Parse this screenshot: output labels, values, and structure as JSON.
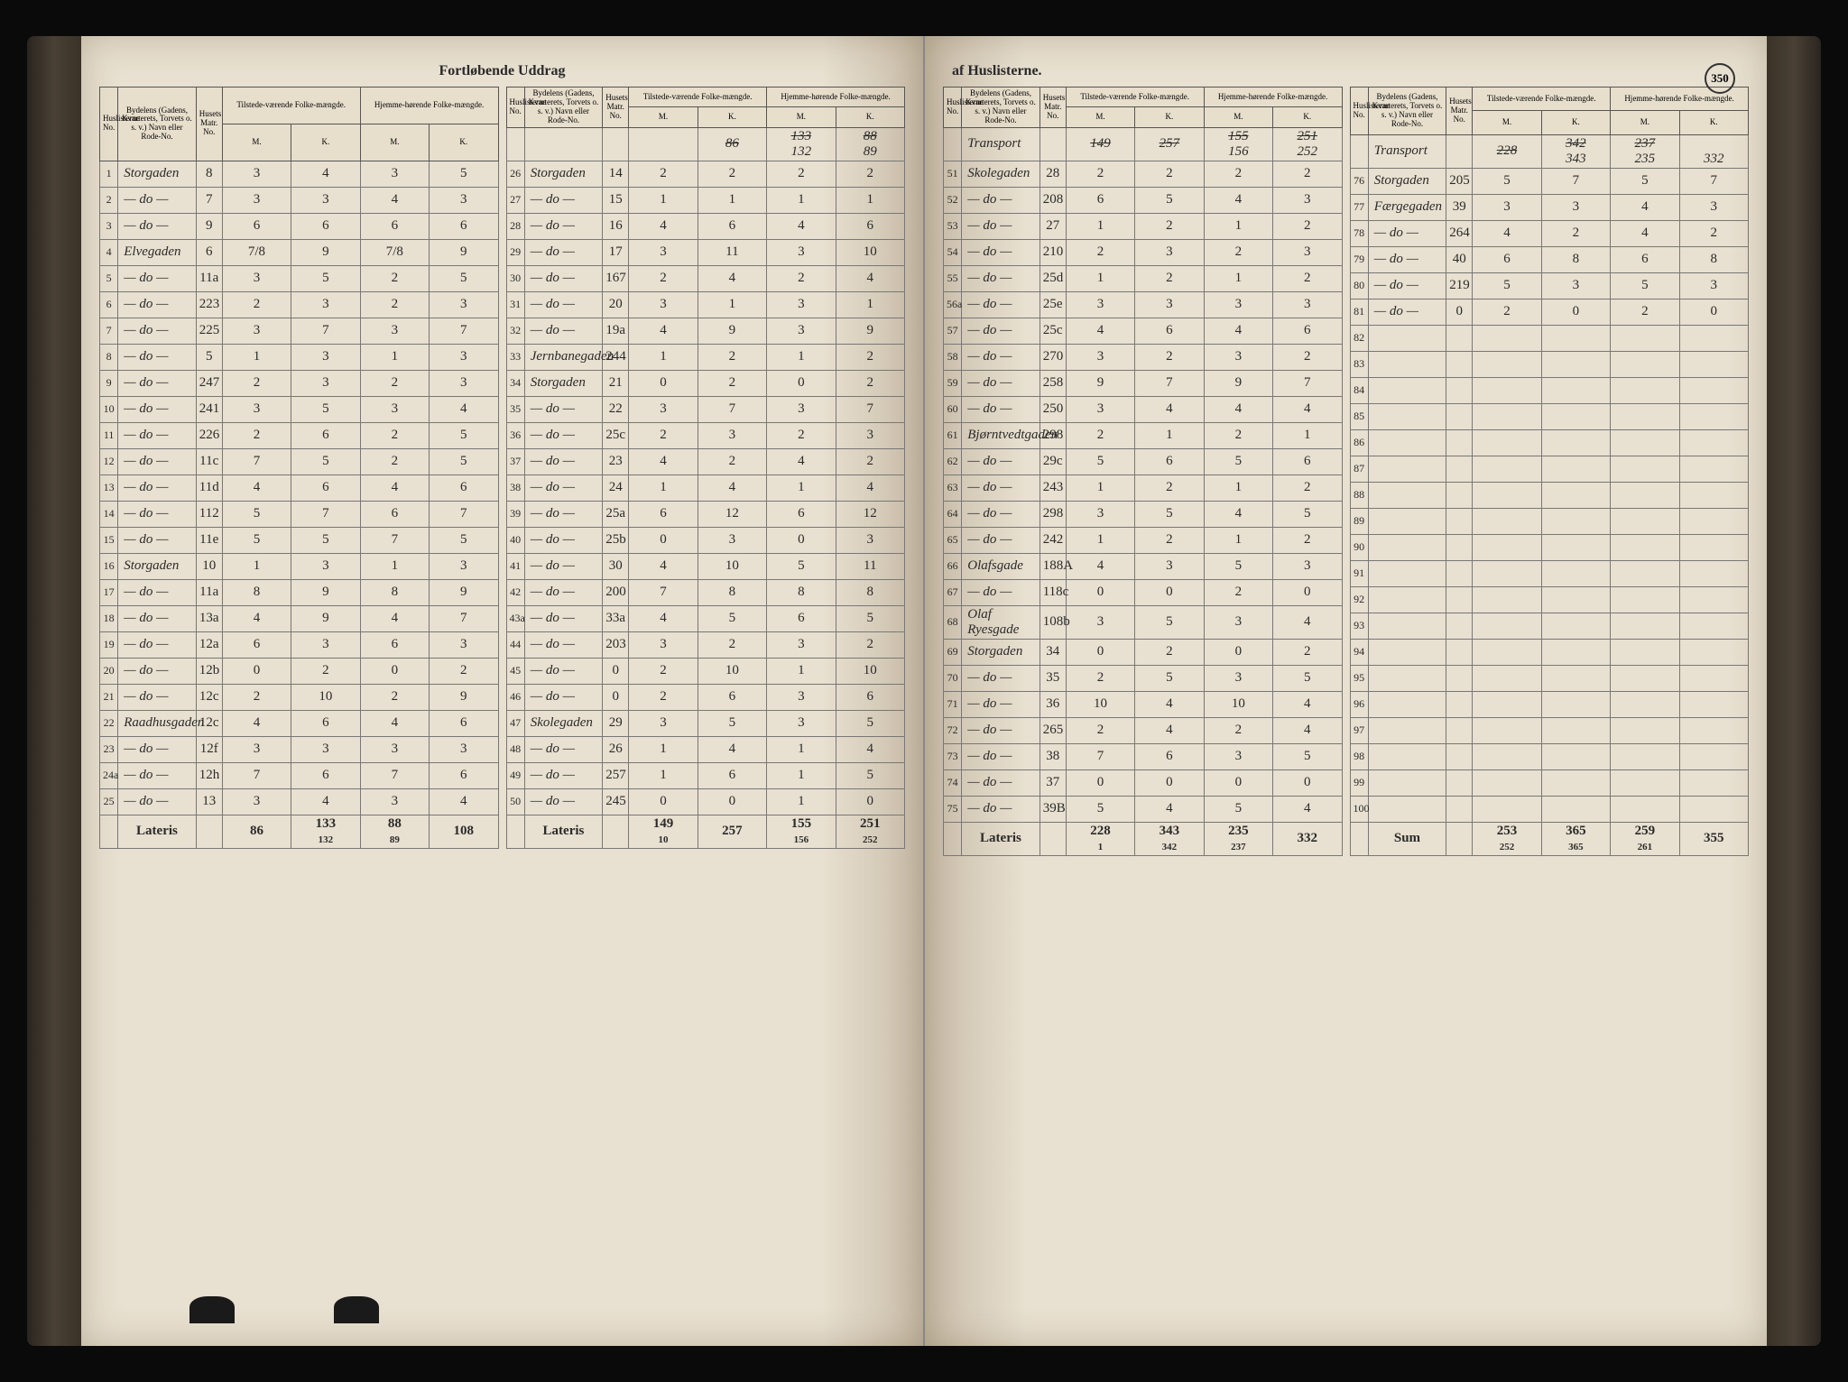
{
  "document": {
    "title_left": "Fortløbende Uddrag",
    "title_right": "af Huslisterne.",
    "page_number": "350",
    "lateris_label": "Lateris",
    "sum_label": "Sum",
    "transport_label": "Transport"
  },
  "headers": {
    "huslisterne": "Huslisterne No.",
    "bydelens": "Bydelens (Gadens, Kvarterets, Torvets o. s. v.) Navn eller Rode-No.",
    "husets": "Husets Matr. No.",
    "tilstede": "Tilstede-værende Folke-mængde.",
    "hjemme": "Hjemme-hørende Folke-mængde.",
    "m": "M.",
    "k": "K."
  },
  "block_a": {
    "transport": [
      "",
      "86",
      "133",
      "88",
      "108"
    ],
    "transport_alt": [
      "",
      "",
      "132",
      "89",
      ""
    ],
    "rows": [
      {
        "n": "1",
        "street": "Storgaden",
        "matr": "8",
        "m1": "3",
        "k1": "4",
        "m2": "3",
        "k2": "5"
      },
      {
        "n": "2",
        "street": "— do —",
        "matr": "7",
        "m1": "3",
        "k1": "3",
        "m2": "4",
        "k2": "3"
      },
      {
        "n": "3",
        "street": "— do —",
        "matr": "9",
        "m1": "6",
        "k1": "6",
        "m2": "6",
        "k2": "6"
      },
      {
        "n": "4",
        "street": "Elvegaden",
        "matr": "6",
        "m1": "7/8",
        "k1": "9",
        "m2": "7/8",
        "k2": "9"
      },
      {
        "n": "5",
        "street": "— do —",
        "matr": "11a",
        "m1": "3",
        "k1": "5",
        "m2": "2",
        "k2": "5"
      },
      {
        "n": "6",
        "street": "— do —",
        "matr": "223",
        "m1": "2",
        "k1": "3",
        "m2": "2",
        "k2": "3"
      },
      {
        "n": "7",
        "street": "— do —",
        "matr": "225",
        "m1": "3",
        "k1": "7",
        "m2": "3",
        "k2": "7"
      },
      {
        "n": "8",
        "street": "— do —",
        "matr": "5",
        "m1": "1",
        "k1": "3",
        "m2": "1",
        "k2": "3"
      },
      {
        "n": "9",
        "street": "— do —",
        "matr": "247",
        "m1": "2",
        "k1": "3",
        "m2": "2",
        "k2": "3"
      },
      {
        "n": "10",
        "street": "— do —",
        "matr": "241",
        "m1": "3",
        "k1": "5",
        "m2": "3",
        "k2": "4"
      },
      {
        "n": "11",
        "street": "— do —",
        "matr": "226",
        "m1": "2",
        "k1": "6",
        "m2": "2",
        "k2": "5"
      },
      {
        "n": "12",
        "street": "— do —",
        "matr": "11c",
        "m1": "7",
        "k1": "5",
        "m2": "2",
        "k2": "5"
      },
      {
        "n": "13",
        "street": "— do —",
        "matr": "11d",
        "m1": "4",
        "k1": "6",
        "m2": "4",
        "k2": "6"
      },
      {
        "n": "14",
        "street": "— do —",
        "matr": "112",
        "m1": "5",
        "k1": "7",
        "m2": "6",
        "k2": "7"
      },
      {
        "n": "15",
        "street": "— do —",
        "matr": "11e",
        "m1": "5",
        "k1": "5",
        "m2": "7",
        "k2": "5"
      },
      {
        "n": "16",
        "street": "Storgaden",
        "matr": "10",
        "m1": "1",
        "k1": "3",
        "m2": "1",
        "k2": "3"
      },
      {
        "n": "17",
        "street": "— do —",
        "matr": "11a",
        "m1": "8",
        "k1": "9",
        "m2": "8",
        "k2": "9"
      },
      {
        "n": "18",
        "street": "— do —",
        "matr": "13a",
        "m1": "4",
        "k1": "9",
        "m2": "4",
        "k2": "7"
      },
      {
        "n": "19",
        "street": "— do —",
        "matr": "12a",
        "m1": "6",
        "k1": "3",
        "m2": "6",
        "k2": "3"
      },
      {
        "n": "20",
        "street": "— do —",
        "matr": "12b",
        "m1": "0",
        "k1": "2",
        "m2": "0",
        "k2": "2"
      },
      {
        "n": "21",
        "street": "— do —",
        "matr": "12c",
        "m1": "2",
        "k1": "10",
        "m2": "2",
        "k2": "9"
      },
      {
        "n": "22",
        "street": "Raadhusgaden",
        "matr": "12c",
        "m1": "4",
        "k1": "6",
        "m2": "4",
        "k2": "6"
      },
      {
        "n": "23",
        "street": "— do —",
        "matr": "12f",
        "m1": "3",
        "k1": "3",
        "m2": "3",
        "k2": "3"
      },
      {
        "n": "24a",
        "street": "— do —",
        "matr": "12h",
        "m1": "7",
        "k1": "6",
        "m2": "7",
        "k2": "6"
      },
      {
        "n": "25",
        "street": "— do —",
        "matr": "13",
        "m1": "3",
        "k1": "4",
        "m2": "3",
        "k2": "4"
      }
    ],
    "lateris": [
      "86",
      "133",
      "88",
      "108"
    ],
    "lateris_alt": [
      "",
      "132",
      "89",
      ""
    ]
  },
  "block_b": {
    "rows": [
      {
        "n": "26",
        "street": "Storgaden",
        "matr": "14",
        "m1": "2",
        "k1": "2",
        "m2": "2",
        "k2": "2"
      },
      {
        "n": "27",
        "street": "— do —",
        "matr": "15",
        "m1": "1",
        "k1": "1",
        "m2": "1",
        "k2": "1"
      },
      {
        "n": "28",
        "street": "— do —",
        "matr": "16",
        "m1": "4",
        "k1": "6",
        "m2": "4",
        "k2": "6"
      },
      {
        "n": "29",
        "street": "— do —",
        "matr": "17",
        "m1": "3",
        "k1": "11",
        "m2": "3",
        "k2": "10"
      },
      {
        "n": "30",
        "street": "— do —",
        "matr": "167",
        "m1": "2",
        "k1": "4",
        "m2": "2",
        "k2": "4"
      },
      {
        "n": "31",
        "street": "— do —",
        "matr": "20",
        "m1": "3",
        "k1": "1",
        "m2": "3",
        "k2": "1"
      },
      {
        "n": "32",
        "street": "— do —",
        "matr": "19a",
        "m1": "4",
        "k1": "9",
        "m2": "3",
        "k2": "9"
      },
      {
        "n": "33",
        "street": "Jernbanegaden",
        "matr": "244",
        "m1": "1",
        "k1": "2",
        "m2": "1",
        "k2": "2"
      },
      {
        "n": "34",
        "street": "Storgaden",
        "matr": "21",
        "m1": "0",
        "k1": "2",
        "m2": "0",
        "k2": "2"
      },
      {
        "n": "35",
        "street": "— do —",
        "matr": "22",
        "m1": "3",
        "k1": "7",
        "m2": "3",
        "k2": "7"
      },
      {
        "n": "36",
        "street": "— do —",
        "matr": "25c",
        "m1": "2",
        "k1": "3",
        "m2": "2",
        "k2": "3"
      },
      {
        "n": "37",
        "street": "— do —",
        "matr": "23",
        "m1": "4",
        "k1": "2",
        "m2": "4",
        "k2": "2"
      },
      {
        "n": "38",
        "street": "— do —",
        "matr": "24",
        "m1": "1",
        "k1": "4",
        "m2": "1",
        "k2": "4"
      },
      {
        "n": "39",
        "street": "— do —",
        "matr": "25a",
        "m1": "6",
        "k1": "12",
        "m2": "6",
        "k2": "12"
      },
      {
        "n": "40",
        "street": "— do —",
        "matr": "25b",
        "m1": "0",
        "k1": "3",
        "m2": "0",
        "k2": "3"
      },
      {
        "n": "41",
        "street": "— do —",
        "matr": "30",
        "m1": "4",
        "k1": "10",
        "m2": "5",
        "k2": "11"
      },
      {
        "n": "42",
        "street": "— do —",
        "matr": "200",
        "m1": "7",
        "k1": "8",
        "m2": "8",
        "k2": "8"
      },
      {
        "n": "43a",
        "street": "— do —",
        "matr": "33a",
        "m1": "4",
        "k1": "5",
        "m2": "6",
        "k2": "5"
      },
      {
        "n": "44",
        "street": "— do —",
        "matr": "203",
        "m1": "3",
        "k1": "2",
        "m2": "3",
        "k2": "2"
      },
      {
        "n": "45",
        "street": "— do —",
        "matr": "0",
        "m1": "2",
        "k1": "10",
        "m2": "1",
        "k2": "10"
      },
      {
        "n": "46",
        "street": "— do —",
        "matr": "0",
        "m1": "2",
        "k1": "6",
        "m2": "3",
        "k2": "6"
      },
      {
        "n": "47",
        "street": "Skolegaden",
        "matr": "29",
        "m1": "3",
        "k1": "5",
        "m2": "3",
        "k2": "5"
      },
      {
        "n": "48",
        "street": "— do —",
        "matr": "26",
        "m1": "1",
        "k1": "4",
        "m2": "1",
        "k2": "4"
      },
      {
        "n": "49",
        "street": "— do —",
        "matr": "257",
        "m1": "1",
        "k1": "6",
        "m2": "1",
        "k2": "5"
      },
      {
        "n": "50",
        "street": "— do —",
        "matr": "245",
        "m1": "0",
        "k1": "0",
        "m2": "1",
        "k2": "0"
      }
    ],
    "lateris": [
      "149",
      "257",
      "155",
      "251"
    ],
    "lateris_alt": [
      "10",
      "",
      "156",
      "252"
    ]
  },
  "block_c": {
    "transport": [
      "149",
      "257",
      "155",
      "251"
    ],
    "transport_alt": [
      "",
      "",
      "156",
      "252"
    ],
    "rows": [
      {
        "n": "51",
        "street": "Skolegaden",
        "matr": "28",
        "m1": "2",
        "k1": "2",
        "m2": "2",
        "k2": "2"
      },
      {
        "n": "52",
        "street": "— do —",
        "matr": "208",
        "m1": "6",
        "k1": "5",
        "m2": "4",
        "k2": "3"
      },
      {
        "n": "53",
        "street": "— do —",
        "matr": "27",
        "m1": "1",
        "k1": "2",
        "m2": "1",
        "k2": "2"
      },
      {
        "n": "54",
        "street": "— do —",
        "matr": "210",
        "m1": "2",
        "k1": "3",
        "m2": "2",
        "k2": "3"
      },
      {
        "n": "55",
        "street": "— do —",
        "matr": "25d",
        "m1": "1",
        "k1": "2",
        "m2": "1",
        "k2": "2"
      },
      {
        "n": "56a",
        "street": "— do —",
        "matr": "25e",
        "m1": "3",
        "k1": "3",
        "m2": "3",
        "k2": "3"
      },
      {
        "n": "57",
        "street": "— do —",
        "matr": "25c",
        "m1": "4",
        "k1": "6",
        "m2": "4",
        "k2": "6"
      },
      {
        "n": "58",
        "street": "— do —",
        "matr": "270",
        "m1": "3",
        "k1": "2",
        "m2": "3",
        "k2": "2"
      },
      {
        "n": "59",
        "street": "— do —",
        "matr": "258",
        "m1": "9",
        "k1": "7",
        "m2": "9",
        "k2": "7"
      },
      {
        "n": "60",
        "street": "— do —",
        "matr": "250",
        "m1": "3",
        "k1": "4",
        "m2": "4",
        "k2": "4"
      },
      {
        "n": "61",
        "street": "Bjørntvedtgaden",
        "matr": "298",
        "m1": "2",
        "k1": "1",
        "m2": "2",
        "k2": "1"
      },
      {
        "n": "62",
        "street": "— do —",
        "matr": "29c",
        "m1": "5",
        "k1": "6",
        "m2": "5",
        "k2": "6"
      },
      {
        "n": "63",
        "street": "— do —",
        "matr": "243",
        "m1": "1",
        "k1": "2",
        "m2": "1",
        "k2": "2"
      },
      {
        "n": "64",
        "street": "— do —",
        "matr": "298",
        "m1": "3",
        "k1": "5",
        "m2": "4",
        "k2": "5"
      },
      {
        "n": "65",
        "street": "— do —",
        "matr": "242",
        "m1": "1",
        "k1": "2",
        "m2": "1",
        "k2": "2"
      },
      {
        "n": "66",
        "street": "Olafsgade",
        "matr": "188A",
        "m1": "4",
        "k1": "3",
        "m2": "5",
        "k2": "3"
      },
      {
        "n": "67",
        "street": "— do —",
        "matr": "118c",
        "m1": "0",
        "k1": "0",
        "m2": "2",
        "k2": "0"
      },
      {
        "n": "68",
        "street": "Olaf Ryesgade",
        "matr": "108b",
        "m1": "3",
        "k1": "5",
        "m2": "3",
        "k2": "4"
      },
      {
        "n": "69",
        "street": "Storgaden",
        "matr": "34",
        "m1": "0",
        "k1": "2",
        "m2": "0",
        "k2": "2"
      },
      {
        "n": "70",
        "street": "— do —",
        "matr": "35",
        "m1": "2",
        "k1": "5",
        "m2": "3",
        "k2": "5"
      },
      {
        "n": "71",
        "street": "— do —",
        "matr": "36",
        "m1": "10",
        "k1": "4",
        "m2": "10",
        "k2": "4"
      },
      {
        "n": "72",
        "street": "— do —",
        "matr": "265",
        "m1": "2",
        "k1": "4",
        "m2": "2",
        "k2": "4"
      },
      {
        "n": "73",
        "street": "— do —",
        "matr": "38",
        "m1": "7",
        "k1": "6",
        "m2": "3",
        "k2": "5"
      },
      {
        "n": "74",
        "street": "— do —",
        "matr": "37",
        "m1": "0",
        "k1": "0",
        "m2": "0",
        "k2": "0"
      },
      {
        "n": "75",
        "street": "— do —",
        "matr": "39B",
        "m1": "5",
        "k1": "4",
        "m2": "5",
        "k2": "4"
      }
    ],
    "lateris": [
      "228",
      "343",
      "235",
      "332"
    ],
    "lateris_alt": [
      "1",
      "342",
      "237",
      ""
    ]
  },
  "block_d": {
    "transport": [
      "228",
      "342",
      "237",
      ""
    ],
    "transport_alt": [
      "",
      "343",
      "235",
      "332"
    ],
    "rows": [
      {
        "n": "76",
        "street": "Storgaden",
        "matr": "205",
        "m1": "5",
        "k1": "7",
        "m2": "5",
        "k2": "7"
      },
      {
        "n": "77",
        "street": "Færgegaden",
        "matr": "39",
        "m1": "3",
        "k1": "3",
        "m2": "4",
        "k2": "3"
      },
      {
        "n": "78",
        "street": "— do —",
        "matr": "264",
        "m1": "4",
        "k1": "2",
        "m2": "4",
        "k2": "2"
      },
      {
        "n": "79",
        "street": "— do —",
        "matr": "40",
        "m1": "6",
        "k1": "8",
        "m2": "6",
        "k2": "8"
      },
      {
        "n": "80",
        "street": "— do —",
        "matr": "219",
        "m1": "5",
        "k1": "3",
        "m2": "5",
        "k2": "3"
      },
      {
        "n": "81",
        "street": "— do —",
        "matr": "0",
        "m1": "2",
        "k1": "0",
        "m2": "2",
        "k2": "0"
      },
      {
        "n": "82",
        "street": "",
        "matr": "",
        "m1": "",
        "k1": "",
        "m2": "",
        "k2": ""
      },
      {
        "n": "83",
        "street": "",
        "matr": "",
        "m1": "",
        "k1": "",
        "m2": "",
        "k2": ""
      },
      {
        "n": "84",
        "street": "",
        "matr": "",
        "m1": "",
        "k1": "",
        "m2": "",
        "k2": ""
      },
      {
        "n": "85",
        "street": "",
        "matr": "",
        "m1": "",
        "k1": "",
        "m2": "",
        "k2": ""
      },
      {
        "n": "86",
        "street": "",
        "matr": "",
        "m1": "",
        "k1": "",
        "m2": "",
        "k2": ""
      },
      {
        "n": "87",
        "street": "",
        "matr": "",
        "m1": "",
        "k1": "",
        "m2": "",
        "k2": ""
      },
      {
        "n": "88",
        "street": "",
        "matr": "",
        "m1": "",
        "k1": "",
        "m2": "",
        "k2": ""
      },
      {
        "n": "89",
        "street": "",
        "matr": "",
        "m1": "",
        "k1": "",
        "m2": "",
        "k2": ""
      },
      {
        "n": "90",
        "street": "",
        "matr": "",
        "m1": "",
        "k1": "",
        "m2": "",
        "k2": ""
      },
      {
        "n": "91",
        "street": "",
        "matr": "",
        "m1": "",
        "k1": "",
        "m2": "",
        "k2": ""
      },
      {
        "n": "92",
        "street": "",
        "matr": "",
        "m1": "",
        "k1": "",
        "m2": "",
        "k2": ""
      },
      {
        "n": "93",
        "street": "",
        "matr": "",
        "m1": "",
        "k1": "",
        "m2": "",
        "k2": ""
      },
      {
        "n": "94",
        "street": "",
        "matr": "",
        "m1": "",
        "k1": "",
        "m2": "",
        "k2": ""
      },
      {
        "n": "95",
        "street": "",
        "matr": "",
        "m1": "",
        "k1": "",
        "m2": "",
        "k2": ""
      },
      {
        "n": "96",
        "street": "",
        "matr": "",
        "m1": "",
        "k1": "",
        "m2": "",
        "k2": ""
      },
      {
        "n": "97",
        "street": "",
        "matr": "",
        "m1": "",
        "k1": "",
        "m2": "",
        "k2": ""
      },
      {
        "n": "98",
        "street": "",
        "matr": "",
        "m1": "",
        "k1": "",
        "m2": "",
        "k2": ""
      },
      {
        "n": "99",
        "street": "",
        "matr": "",
        "m1": "",
        "k1": "",
        "m2": "",
        "k2": ""
      },
      {
        "n": "100",
        "street": "",
        "matr": "",
        "m1": "",
        "k1": "",
        "m2": "",
        "k2": ""
      }
    ],
    "sum": [
      "253",
      "365",
      "259",
      "355"
    ],
    "sum_alt": [
      "252",
      "365",
      "261",
      ""
    ]
  }
}
